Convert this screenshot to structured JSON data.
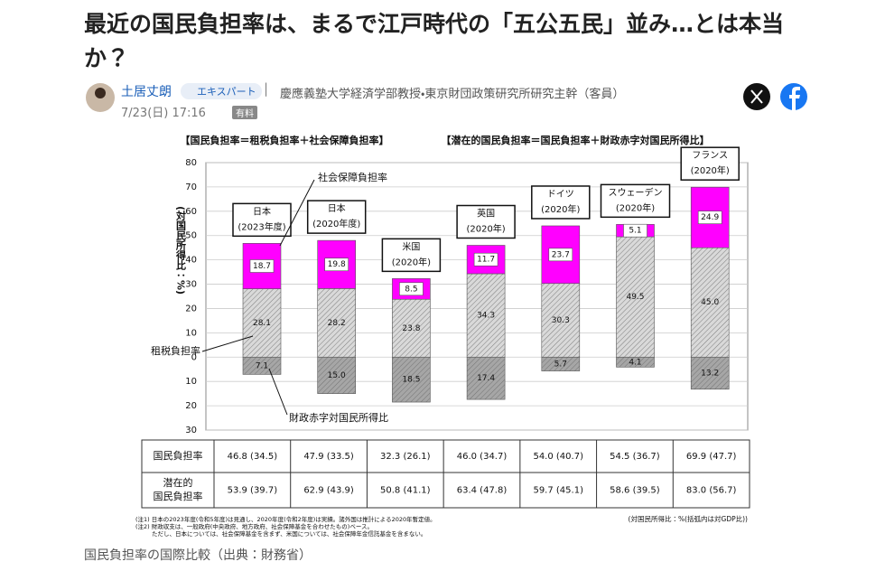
{
  "article": {
    "title": "最近の国民負担率は、まるで江戸時代の「五公五民」並み…とは本当か？",
    "author": "土居丈朗",
    "badge": "エキスパート",
    "affiliation": "慶應義塾大学経済学部教授・東京財団政策研究所研究主幹（客員）",
    "date": "7/23(日) 17:16",
    "tag": "有料",
    "caption": "国民負担率の国際比較（出典：財務省）"
  },
  "chart_data": {
    "type": "bar",
    "stacked": true,
    "headers": [
      "【国民負担率＝租税負担率＋社会保障負担率】",
      "【潜在的国民負担率＝国民負担率＋財政赤字対国民所得比】"
    ],
    "ylabel": "(対国民所得比：%)",
    "categories": [
      [
        "日本",
        "(2023年度)"
      ],
      [
        "日本",
        "(2020年度)"
      ],
      [
        "米国",
        "(2020年)"
      ],
      [
        "英国",
        "(2020年)"
      ],
      [
        "ドイツ",
        "(2020年)"
      ],
      [
        "スウェーデン",
        "(2020年)"
      ],
      [
        "フランス",
        "(2020年)"
      ]
    ],
    "series": [
      {
        "name": "租税負担率",
        "color": "#d9d9d9",
        "values": [
          28.1,
          28.2,
          23.8,
          34.3,
          30.3,
          49.5,
          45.0
        ],
        "value_labels": [
          "28.1",
          "28.2",
          "23.8",
          "34.3",
          "30.3",
          "49.5",
          "45.0"
        ]
      },
      {
        "name": "社会保障負担率",
        "color": "#ff00ff",
        "values": [
          18.7,
          19.8,
          8.5,
          11.7,
          23.7,
          5.1,
          24.9
        ],
        "value_labels": [
          "18.7",
          "19.8",
          "8.5",
          "11.7",
          "23.7",
          "5.1",
          "24.9"
        ]
      },
      {
        "name": "財政赤字対国民所得比",
        "color": "#a6a6a6",
        "values": [
          -7.1,
          -15.0,
          -18.5,
          -17.4,
          -5.7,
          -4.1,
          -13.2
        ],
        "value_labels": [
          "7.1",
          "15.0",
          "18.5",
          "17.4",
          "5.7",
          "4.1",
          "13.2"
        ]
      }
    ],
    "ylim": [
      -30,
      80
    ],
    "yticks": [
      80,
      70,
      60,
      50,
      40,
      30,
      20,
      10,
      0,
      {
        "value": -10,
        "label": "10"
      },
      {
        "value": -20,
        "label": "20"
      },
      {
        "value": -30,
        "label": "30"
      }
    ],
    "grid": true,
    "table": {
      "rows": [
        {
          "label": [
            "国民負担率"
          ],
          "cells": [
            "46.8 (34.5)",
            "47.9 (33.5)",
            "32.3 (26.1)",
            "46.0 (34.7)",
            "54.0 (40.7)",
            "54.5 (36.7)",
            "69.9 (47.7)"
          ]
        },
        {
          "label": [
            "潜在的",
            "国民負担率"
          ],
          "cells": [
            "53.9 (39.7)",
            "62.9 (43.9)",
            "50.8 (41.1)",
            "63.4 (47.8)",
            "59.7 (45.1)",
            "58.6 (39.5)",
            "83.0 (56.7)"
          ]
        }
      ]
    },
    "notes": [
      "(注1) 日本の2023年度(令和5年度)は見通し、2020年度(令和2年度)は実績。諸外国は推計による2020年暫定値。",
      "(注2) 財政収支は、一般政府(中央政府、地方政府、社会保障基金を合わせたもの)ベース。",
      "ただし、日本については、社会保障基金を含まず、米国については、社会保障年金信託基金を含まない。"
    ],
    "unit_note": "(対国民所得比：%(括弧内は対GDP比))"
  }
}
